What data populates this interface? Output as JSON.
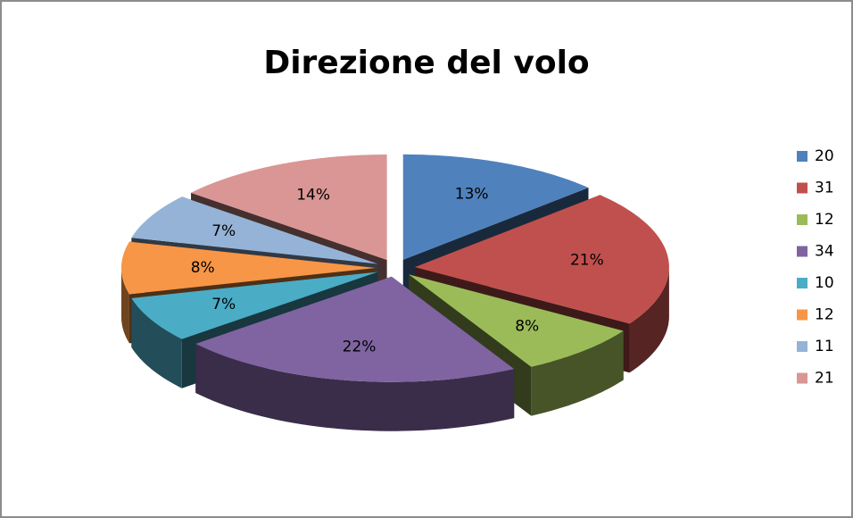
{
  "chart_data": {
    "type": "pie",
    "title": "Direzione del volo",
    "categories": [
      "20",
      "31",
      "12",
      "34",
      "10",
      "12",
      "11",
      "21"
    ],
    "values": [
      13,
      21,
      8,
      22,
      7,
      8,
      7,
      14
    ],
    "value_labels": [
      "13%",
      "21%",
      "8%",
      "22%",
      "7%",
      "8%",
      "7%",
      "14%"
    ],
    "colors": [
      "#4f81bd",
      "#c0504d",
      "#9bbb59",
      "#8064a2",
      "#4bacc6",
      "#f79646",
      "#95b3d7",
      "#d99694"
    ],
    "legend": "right"
  }
}
